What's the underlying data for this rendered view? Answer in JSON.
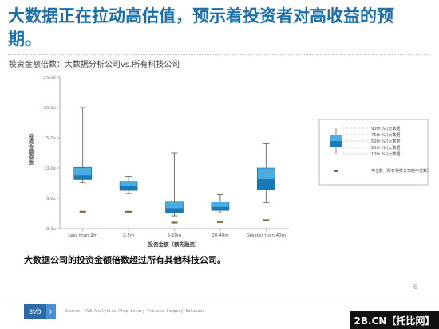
{
  "header": {
    "title": "大数据正在拉动高估值，预示着投资者对高收益的预期。",
    "subtitle": "投资金额倍数：大数据分析公司vs.所有科技公司"
  },
  "colors": {
    "title": "#1a6fa8",
    "box_light": "#4aaee2",
    "box_dark": "#1a7ab8",
    "median_marker": "#7d6a45"
  },
  "chart_data": {
    "type": "box",
    "ylabel": "投资金额倍数",
    "xlabel": "投资金额（预先融资）",
    "ylim": [
      0,
      25
    ],
    "yticks": [
      "0.0x",
      "5.0x",
      "10.0x",
      "15.0x",
      "20.0x",
      "25.0x"
    ],
    "categories": [
      "Less than 2m",
      "2-5m",
      "5-20m",
      "20-40m",
      "Greater than 40m"
    ],
    "series": [
      {
        "name": "大数据",
        "p10": [
          7.6,
          5.8,
          2.1,
          2.6,
          4.3
        ],
        "p25": [
          8.1,
          6.3,
          2.6,
          3.0,
          6.4
        ],
        "p50": [
          8.8,
          7.0,
          3.4,
          3.6,
          8.2
        ],
        "p75": [
          10.1,
          7.8,
          4.5,
          4.4,
          10.0
        ],
        "p90": [
          20.0,
          8.6,
          12.5,
          5.6,
          14.0
        ]
      },
      {
        "name": "所有科技公司的中位数",
        "values": [
          2.8,
          2.8,
          1.0,
          1.1,
          1.4
        ]
      }
    ],
    "legend": {
      "items": [
        {
          "label": "90th % (大数据)"
        },
        {
          "label": "75th % (大数据)"
        },
        {
          "label": "50th % (大数据)"
        },
        {
          "label": "25th % (大数据)"
        },
        {
          "label": "10th % (大数据)"
        },
        {
          "label": "中位数（所有科技公司的中位数）"
        }
      ],
      "position": "right"
    },
    "grid": false
  },
  "conclusion": "大数据公司的投资金额倍数超过所有其他科技公司。",
  "footer": {
    "logo_text": "svb",
    "logo_arrow": "›",
    "source": "Source: SVB Analytics Proprietary Private Company Database",
    "page": "6"
  },
  "watermark": "2B.CN【托比网】"
}
